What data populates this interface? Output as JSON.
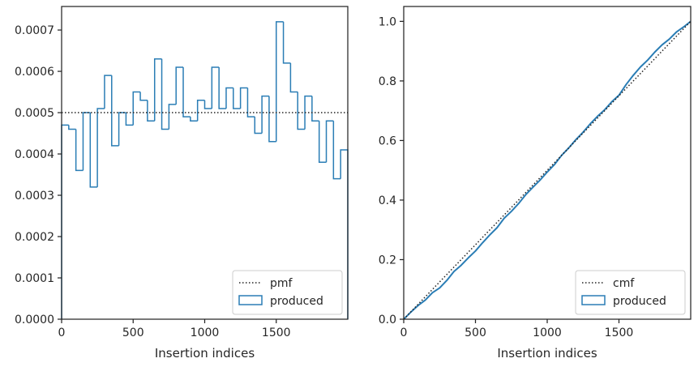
{
  "colors": {
    "produced": "#2a7db5",
    "reference": "#222222",
    "axes": "#262626",
    "legend_border": "#cccccc"
  },
  "chart_data": [
    {
      "type": "step-histogram",
      "title": "",
      "xlabel": "Insertion indices",
      "ylabel": "",
      "xlim": [
        0,
        2000
      ],
      "ylim": [
        0,
        0.000757
      ],
      "xticks": [
        0,
        500,
        1000,
        1500
      ],
      "xtick_labels": [
        "0",
        "500",
        "1000",
        "1500"
      ],
      "yticks": [
        0,
        0.0001,
        0.0002,
        0.0003,
        0.0004,
        0.0005,
        0.0006,
        0.0007
      ],
      "ytick_labels": [
        "0.0000",
        "0.0001",
        "0.0002",
        "0.0003",
        "0.0004",
        "0.0005",
        "0.0006",
        "0.0007"
      ],
      "grid": false,
      "legend_position": "lower-right",
      "bin_width": 50,
      "bin_edges_start": 0,
      "reference": {
        "name": "pmf",
        "value": 0.0005
      },
      "series": [
        {
          "name": "produced",
          "values": [
            0.00047,
            0.00046,
            0.00036,
            0.0005,
            0.00032,
            0.00051,
            0.00059,
            0.00042,
            0.0005,
            0.00047,
            0.00055,
            0.00053,
            0.00048,
            0.00063,
            0.00046,
            0.00052,
            0.00061,
            0.00049,
            0.00048,
            0.00053,
            0.00051,
            0.00061,
            0.00051,
            0.00056,
            0.00051,
            0.00056,
            0.00049,
            0.00045,
            0.00054,
            0.00043,
            0.00072,
            0.00062,
            0.00055,
            0.00046,
            0.00054,
            0.00048,
            0.00038,
            0.00048,
            0.00034,
            0.00041
          ]
        }
      ]
    },
    {
      "type": "step-cdf",
      "title": "",
      "xlabel": "Insertion indices",
      "ylabel": "",
      "xlim": [
        0,
        2000
      ],
      "ylim": [
        0,
        1.05
      ],
      "xticks": [
        0,
        500,
        1000,
        1500
      ],
      "xtick_labels": [
        "0",
        "500",
        "1000",
        "1500"
      ],
      "yticks": [
        0,
        0.2,
        0.4,
        0.6,
        0.8,
        1.0
      ],
      "ytick_labels": [
        "0.0",
        "0.2",
        "0.4",
        "0.6",
        "0.8",
        "1.0"
      ],
      "grid": false,
      "legend_position": "lower-right",
      "reference": {
        "name": "cmf",
        "x": [
          0,
          2000
        ],
        "y": [
          0,
          1.0
        ]
      },
      "series": [
        {
          "name": "produced",
          "x": [
            0,
            50,
            100,
            150,
            200,
            250,
            300,
            350,
            400,
            450,
            500,
            550,
            600,
            650,
            700,
            750,
            800,
            850,
            900,
            950,
            1000,
            1050,
            1100,
            1150,
            1200,
            1250,
            1300,
            1350,
            1400,
            1450,
            1500,
            1550,
            1600,
            1650,
            1700,
            1750,
            1800,
            1850,
            1900,
            1950,
            2000
          ],
          "y": [
            0,
            0.024,
            0.046,
            0.064,
            0.089,
            0.105,
            0.13,
            0.16,
            0.181,
            0.206,
            0.229,
            0.257,
            0.283,
            0.307,
            0.339,
            0.362,
            0.388,
            0.418,
            0.443,
            0.467,
            0.494,
            0.519,
            0.55,
            0.575,
            0.603,
            0.628,
            0.656,
            0.681,
            0.703,
            0.73,
            0.752,
            0.788,
            0.819,
            0.847,
            0.87,
            0.897,
            0.921,
            0.94,
            0.964,
            0.981,
            1.0
          ]
        }
      ]
    }
  ]
}
